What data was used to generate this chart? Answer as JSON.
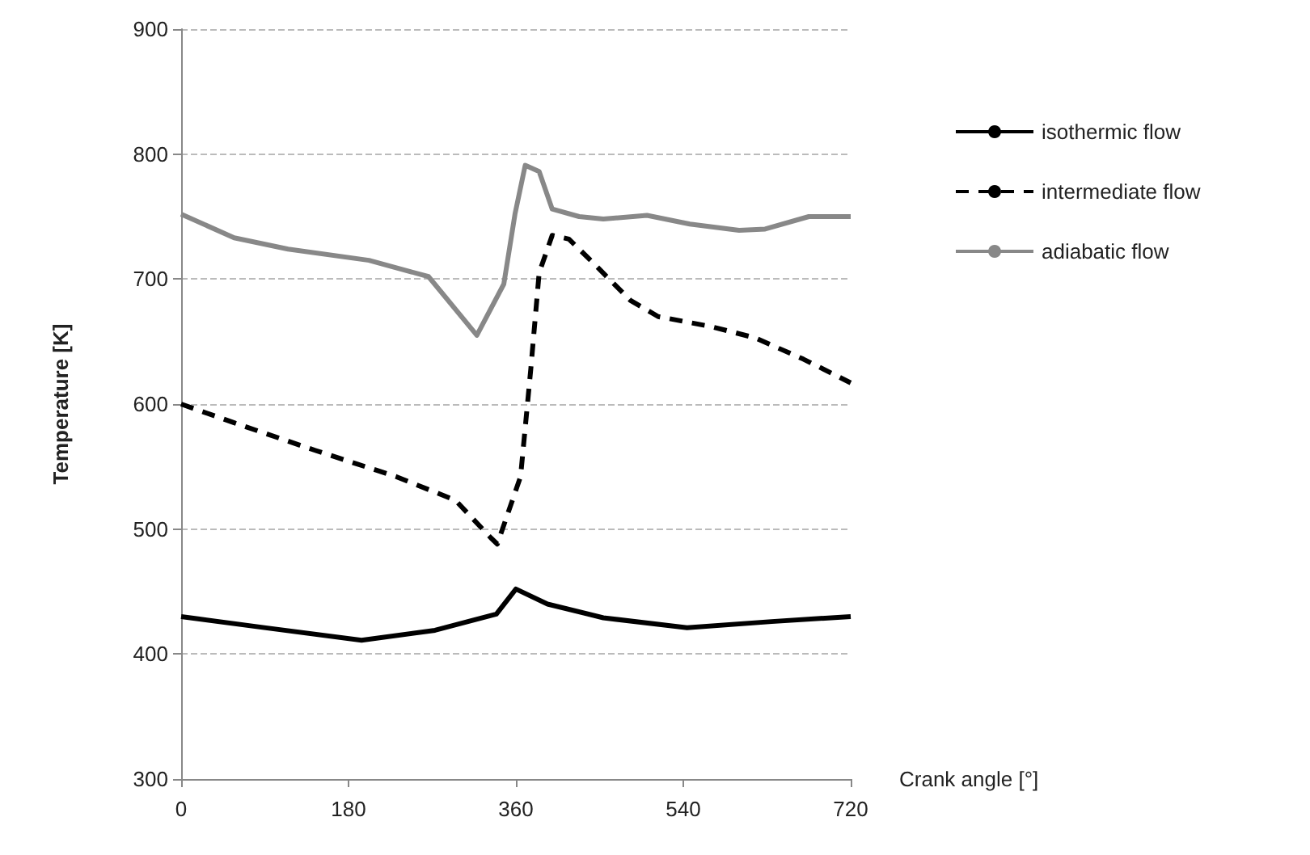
{
  "chart_data": {
    "type": "line",
    "xlabel": "Crank angle [°]",
    "ylabel": "Temperature [K]",
    "xlim": [
      0,
      720
    ],
    "xticks": [
      0,
      180,
      360,
      540,
      720
    ],
    "ylim": [
      300,
      900
    ],
    "yticks": [
      300,
      400,
      500,
      600,
      700,
      800,
      900
    ],
    "grid": "y",
    "legend": "right",
    "marker": "none",
    "series": [
      {
        "name": "isothermic flow",
        "color": "#000000",
        "line_style": "solid",
        "x": [
          0,
          91,
          194,
          273,
          339,
          360,
          394,
          454,
          544,
          635,
          720
        ],
        "values": [
          430,
          421,
          411,
          419,
          432,
          452,
          440,
          429,
          421,
          426,
          430
        ]
      },
      {
        "name": "intermediate flow",
        "color": "#000000",
        "line_style": "dashed",
        "x": [
          0,
          57,
          144,
          231,
          295,
          333,
          340,
          365,
          376,
          385,
          399,
          417,
          443,
          483,
          513,
          570,
          617,
          669,
          720
        ],
        "values": [
          600,
          585,
          563,
          542,
          523,
          493,
          488,
          542,
          628,
          705,
          735,
          732,
          713,
          683,
          670,
          662,
          653,
          636,
          617
        ]
      },
      {
        "name": "adiabatic flow",
        "color": "#888888",
        "line_style": "solid",
        "x": [
          0,
          57,
          115,
          202,
          266,
          318,
          347,
          359,
          370,
          385,
          399,
          428,
          454,
          501,
          547,
          600,
          628,
          675,
          720
        ],
        "values": [
          752,
          733,
          724,
          715,
          702,
          655,
          696,
          752,
          791,
          786,
          756,
          750,
          748,
          751,
          744,
          739,
          740,
          750,
          750
        ]
      }
    ]
  }
}
